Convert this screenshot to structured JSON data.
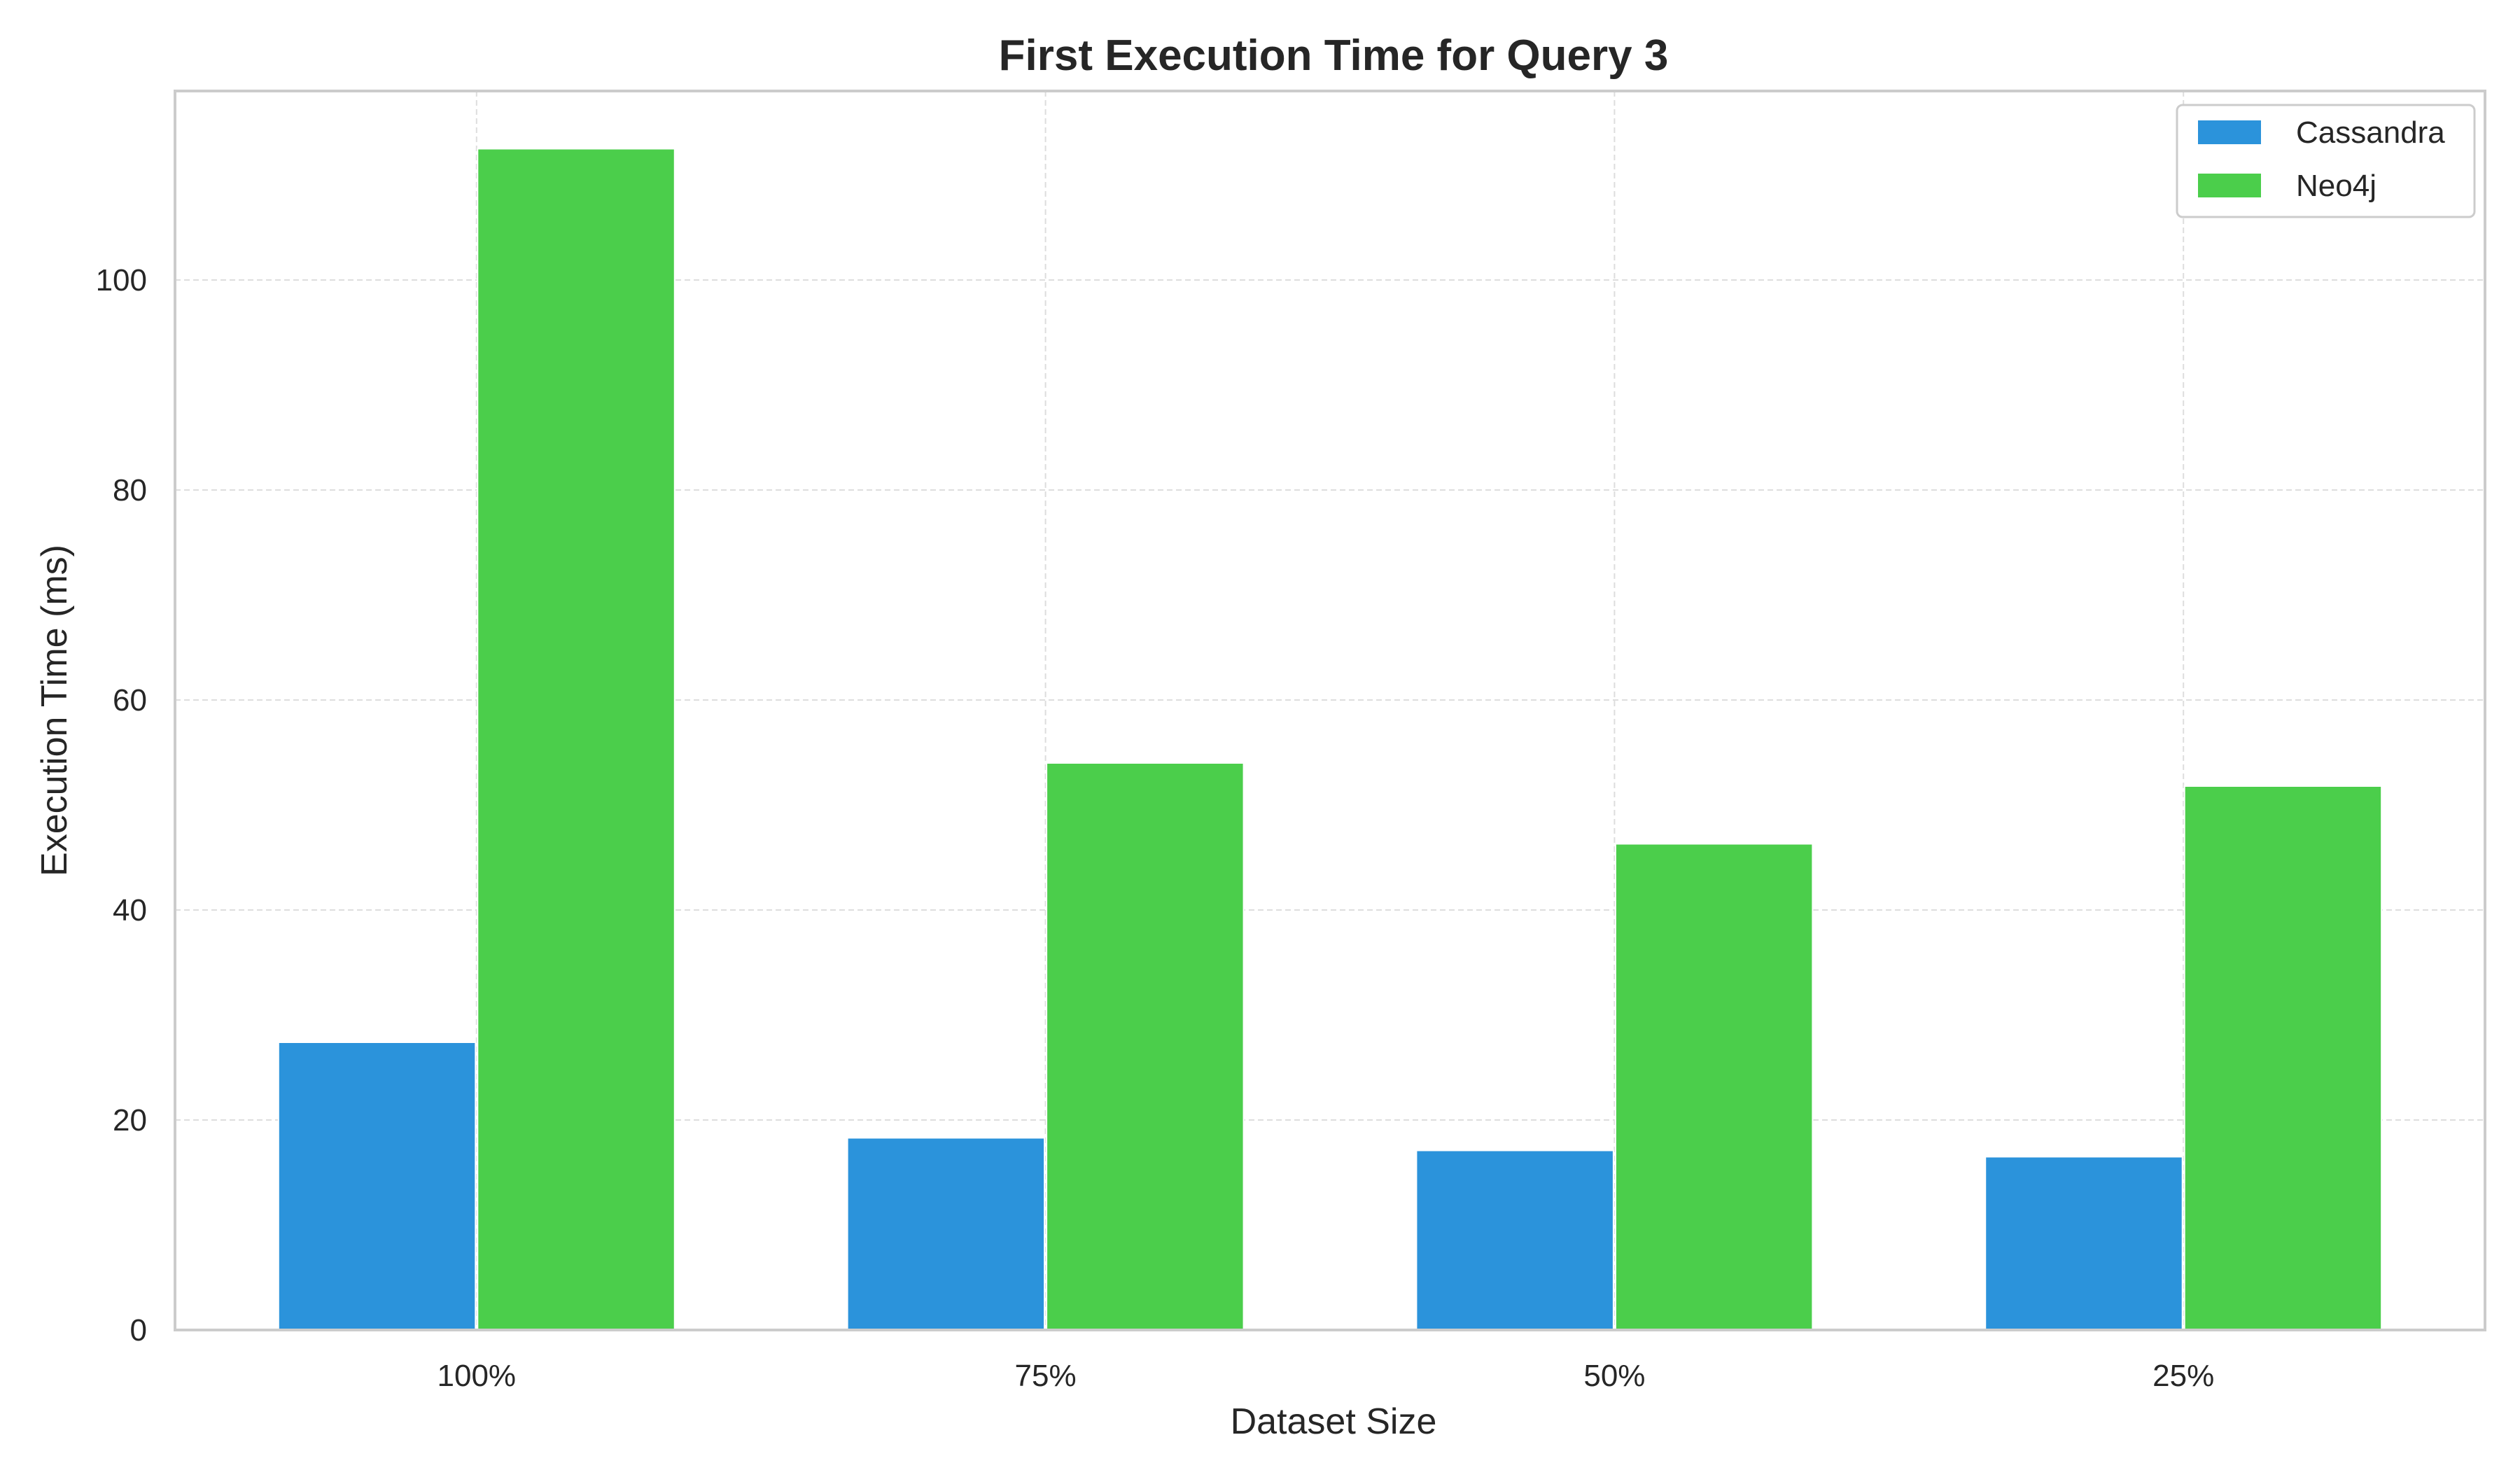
{
  "chart_data": {
    "type": "bar",
    "title": "First Execution Time for Query 3",
    "xlabel": "Dataset Size",
    "ylabel": "Execution Time (ms)",
    "categories": [
      "100%",
      "75%",
      "50%",
      "25%"
    ],
    "series": [
      {
        "name": "Cassandra",
        "color": "#2b93db",
        "values": [
          27.4,
          18.3,
          17.1,
          16.5
        ]
      },
      {
        "name": "Neo4j",
        "color": "#4bce4b",
        "values": [
          112.5,
          54.0,
          46.3,
          51.8
        ]
      }
    ],
    "ylim": [
      0,
      118
    ],
    "yticks": [
      0,
      20,
      40,
      60,
      80,
      100
    ],
    "grid": true,
    "legend_position": "top-right"
  }
}
